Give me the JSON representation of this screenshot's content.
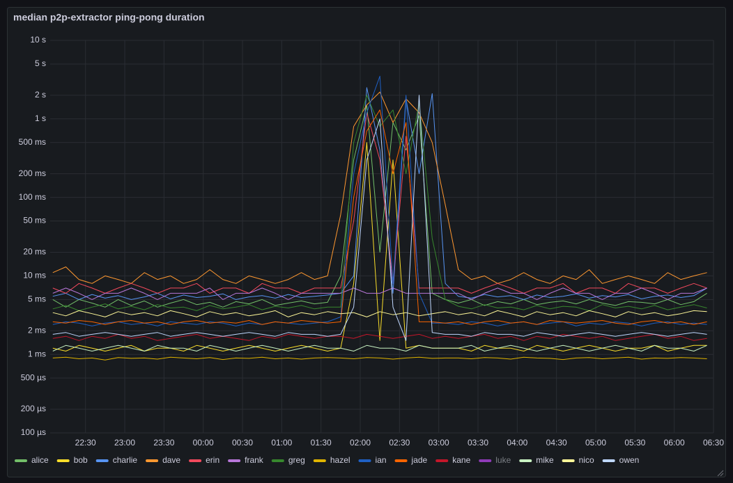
{
  "chart_data": {
    "type": "line",
    "title": "median p2p-extractor ping-pong duration",
    "log_y": true,
    "grid": true,
    "x": [
      5,
      15,
      25,
      35,
      45,
      55,
      65,
      75,
      85,
      95,
      105,
      115,
      125,
      135,
      145,
      155,
      165,
      175,
      185,
      195,
      205,
      215,
      225,
      235,
      245,
      255,
      265,
      275,
      285,
      295,
      305,
      315,
      325,
      335,
      345,
      355,
      365,
      375,
      385,
      395,
      405,
      415,
      425,
      435,
      445,
      455,
      465,
      475,
      485,
      495,
      505
    ],
    "xlim": [
      3,
      510
    ],
    "xticks": [
      {
        "value": 30,
        "label": "22:30"
      },
      {
        "value": 60,
        "label": "23:00"
      },
      {
        "value": 90,
        "label": "23:30"
      },
      {
        "value": 120,
        "label": "00:00"
      },
      {
        "value": 150,
        "label": "00:30"
      },
      {
        "value": 180,
        "label": "01:00"
      },
      {
        "value": 210,
        "label": "01:30"
      },
      {
        "value": 240,
        "label": "02:00"
      },
      {
        "value": 270,
        "label": "02:30"
      },
      {
        "value": 300,
        "label": "03:00"
      },
      {
        "value": 330,
        "label": "03:30"
      },
      {
        "value": 360,
        "label": "04:00"
      },
      {
        "value": 390,
        "label": "04:30"
      },
      {
        "value": 420,
        "label": "05:00"
      },
      {
        "value": 450,
        "label": "05:30"
      },
      {
        "value": 480,
        "label": "06:00"
      },
      {
        "value": 510,
        "label": "06:30"
      }
    ],
    "ylim": [
      0.0001,
      10
    ],
    "yticks": [
      {
        "value": 0.0001,
        "label": "100 µs"
      },
      {
        "value": 0.0002,
        "label": "200 µs"
      },
      {
        "value": 0.0005,
        "label": "500 µs"
      },
      {
        "value": 0.001,
        "label": "1 ms"
      },
      {
        "value": 0.002,
        "label": "2 ms"
      },
      {
        "value": 0.005,
        "label": "5 ms"
      },
      {
        "value": 0.01,
        "label": "10 ms"
      },
      {
        "value": 0.02,
        "label": "20 ms"
      },
      {
        "value": 0.05,
        "label": "50 ms"
      },
      {
        "value": 0.1,
        "label": "100 ms"
      },
      {
        "value": 0.2,
        "label": "200 ms"
      },
      {
        "value": 0.5,
        "label": "500 ms"
      },
      {
        "value": 1,
        "label": "1 s"
      },
      {
        "value": 2,
        "label": "2 s"
      },
      {
        "value": 5,
        "label": "5 s"
      },
      {
        "value": 10,
        "label": "10 s"
      }
    ],
    "series": [
      {
        "name": "alice",
        "color": "#73bf69",
        "values": [
          0.005,
          0.004,
          0.005,
          0.0045,
          0.004,
          0.005,
          0.0042,
          0.0048,
          0.004,
          0.0045,
          0.005,
          0.0043,
          0.0046,
          0.004,
          0.0047,
          0.0044,
          0.005,
          0.0042,
          0.0045,
          0.0048,
          0.0044,
          0.0046,
          0.01,
          0.3,
          1.5,
          0.02,
          0.9,
          0.4,
          1.1,
          0.006,
          0.005,
          0.0045,
          0.005,
          0.0042,
          0.0047,
          0.0044,
          0.005,
          0.0043,
          0.0046,
          0.0048,
          0.0044,
          0.005,
          0.0045,
          0.0042,
          0.0047,
          0.0046,
          0.0044,
          0.005,
          0.0043,
          0.0047,
          0.006
        ]
      },
      {
        "name": "bob",
        "color": "#fade2a",
        "values": [
          0.0012,
          0.0011,
          0.0013,
          0.0012,
          0.0011,
          0.0012,
          0.0013,
          0.0011,
          0.0012,
          0.0012,
          0.0011,
          0.0013,
          0.0012,
          0.0011,
          0.0012,
          0.0013,
          0.0012,
          0.0011,
          0.0012,
          0.0013,
          0.0012,
          0.0011,
          0.0012,
          0.008,
          0.5,
          0.0015,
          0.3,
          0.0012,
          0.0013,
          0.0012,
          0.0012,
          0.0012,
          0.0011,
          0.0013,
          0.0012,
          0.0012,
          0.0011,
          0.0013,
          0.0012,
          0.0011,
          0.0012,
          0.0013,
          0.0012,
          0.0011,
          0.0012,
          0.0012,
          0.0013,
          0.0011,
          0.0012,
          0.0013,
          0.0013
        ]
      },
      {
        "name": "charlie",
        "color": "#5794f2",
        "values": [
          0.0055,
          0.006,
          0.005,
          0.0058,
          0.0052,
          0.0056,
          0.005,
          0.0054,
          0.006,
          0.0051,
          0.0057,
          0.0053,
          0.0055,
          0.0059,
          0.005,
          0.0054,
          0.0056,
          0.0052,
          0.0058,
          0.0053,
          0.0055,
          0.0057,
          0.006,
          0.01,
          2.5,
          0.4,
          0.006,
          1.8,
          0.2,
          2.1,
          0.008,
          0.0055,
          0.0052,
          0.0058,
          0.0054,
          0.0056,
          0.005,
          0.0057,
          0.0053,
          0.0055,
          0.0059,
          0.0052,
          0.0056,
          0.0054,
          0.0058,
          0.0051,
          0.0055,
          0.0057,
          0.0053,
          0.0056,
          0.007
        ]
      },
      {
        "name": "dave",
        "color": "#ff9830",
        "values": [
          0.011,
          0.013,
          0.009,
          0.008,
          0.01,
          0.009,
          0.008,
          0.011,
          0.009,
          0.01,
          0.008,
          0.009,
          0.012,
          0.009,
          0.008,
          0.01,
          0.009,
          0.008,
          0.009,
          0.011,
          0.009,
          0.01,
          0.06,
          0.8,
          1.5,
          2.2,
          0.9,
          1.8,
          1.2,
          0.5,
          0.08,
          0.012,
          0.009,
          0.01,
          0.008,
          0.009,
          0.011,
          0.009,
          0.008,
          0.01,
          0.009,
          0.012,
          0.008,
          0.009,
          0.01,
          0.009,
          0.008,
          0.011,
          0.009,
          0.01,
          0.011
        ]
      },
      {
        "name": "erin",
        "color": "#f2495c",
        "values": [
          0.007,
          0.006,
          0.008,
          0.007,
          0.006,
          0.007,
          0.008,
          0.007,
          0.006,
          0.007,
          0.007,
          0.008,
          0.006,
          0.007,
          0.007,
          0.006,
          0.008,
          0.007,
          0.007,
          0.006,
          0.007,
          0.007,
          0.007,
          0.05,
          1.2,
          0.3,
          0.008,
          0.6,
          0.007,
          0.007,
          0.007,
          0.007,
          0.006,
          0.007,
          0.008,
          0.007,
          0.006,
          0.007,
          0.007,
          0.008,
          0.006,
          0.007,
          0.007,
          0.006,
          0.008,
          0.007,
          0.007,
          0.006,
          0.007,
          0.008,
          0.007
        ]
      },
      {
        "name": "frank",
        "color": "#b877d9",
        "values": [
          0.006,
          0.007,
          0.006,
          0.005,
          0.006,
          0.006,
          0.007,
          0.006,
          0.005,
          0.006,
          0.006,
          0.006,
          0.007,
          0.005,
          0.006,
          0.006,
          0.007,
          0.006,
          0.005,
          0.006,
          0.006,
          0.006,
          0.006,
          0.007,
          0.006,
          0.006,
          0.007,
          0.006,
          0.006,
          0.006,
          0.006,
          0.006,
          0.005,
          0.006,
          0.007,
          0.006,
          0.006,
          0.005,
          0.006,
          0.007,
          0.006,
          0.006,
          0.005,
          0.006,
          0.006,
          0.007,
          0.006,
          0.005,
          0.006,
          0.006,
          0.007
        ]
      },
      {
        "name": "greg",
        "color": "#37872d",
        "values": [
          0.0038,
          0.0042,
          0.0036,
          0.004,
          0.0044,
          0.0038,
          0.0041,
          0.0037,
          0.0043,
          0.0039,
          0.004,
          0.0036,
          0.0042,
          0.0038,
          0.004,
          0.0043,
          0.0037,
          0.0041,
          0.0039,
          0.0042,
          0.0038,
          0.004,
          0.004,
          0.5,
          2.0,
          0.8,
          1.3,
          0.2,
          1.6,
          0.03,
          0.005,
          0.0041,
          0.0038,
          0.0043,
          0.0039,
          0.004,
          0.0037,
          0.0042,
          0.0038,
          0.0041,
          0.004,
          0.0036,
          0.0043,
          0.0039,
          0.0041,
          0.0038,
          0.0042,
          0.0037,
          0.004,
          0.0043,
          0.0039
        ]
      },
      {
        "name": "hazel",
        "color": "#e0b400",
        "values": [
          0.0009,
          0.00092,
          0.00088,
          0.0009,
          0.00085,
          0.00091,
          0.00089,
          0.0009,
          0.00087,
          0.00092,
          0.0009,
          0.00088,
          0.00091,
          0.00086,
          0.0009,
          0.00089,
          0.00092,
          0.00088,
          0.0009,
          0.00087,
          0.0009,
          0.00091,
          0.0009,
          0.00088,
          0.00091,
          0.0009,
          0.00087,
          0.0009,
          0.00092,
          0.00089,
          0.0009,
          0.0009,
          0.00088,
          0.00091,
          0.0009,
          0.00087,
          0.00092,
          0.0009,
          0.00089,
          0.00086,
          0.0009,
          0.00091,
          0.00088,
          0.0009,
          0.00092,
          0.00087,
          0.0009,
          0.00089,
          0.00091,
          0.0009,
          0.00088
        ]
      },
      {
        "name": "ian",
        "color": "#1f60c4",
        "values": [
          0.0024,
          0.0026,
          0.0025,
          0.0023,
          0.0025,
          0.0026,
          0.0024,
          0.0025,
          0.0023,
          0.0026,
          0.0025,
          0.0024,
          0.0026,
          0.0025,
          0.0023,
          0.0025,
          0.0024,
          0.0026,
          0.0025,
          0.0024,
          0.0025,
          0.0026,
          0.003,
          0.2,
          1.2,
          3.5,
          0.008,
          2.0,
          0.006,
          0.0025,
          0.0025,
          0.0024,
          0.0026,
          0.0025,
          0.0023,
          0.0025,
          0.0026,
          0.0024,
          0.0025,
          0.0026,
          0.0023,
          0.0025,
          0.0024,
          0.0026,
          0.0025,
          0.0023,
          0.0025,
          0.0026,
          0.0024,
          0.0025,
          0.0024
        ]
      },
      {
        "name": "jade",
        "color": "#fa6400",
        "values": [
          0.0026,
          0.0025,
          0.0027,
          0.0026,
          0.0024,
          0.0026,
          0.0027,
          0.0025,
          0.0026,
          0.0024,
          0.0026,
          0.0027,
          0.0025,
          0.0026,
          0.0025,
          0.0027,
          0.0024,
          0.0026,
          0.0025,
          0.0027,
          0.0026,
          0.0025,
          0.0026,
          0.1,
          0.7,
          1.3,
          0.2,
          0.9,
          0.0026,
          0.0026,
          0.0025,
          0.0026,
          0.0024,
          0.0026,
          0.0027,
          0.0025,
          0.0026,
          0.0024,
          0.0027,
          0.0026,
          0.0025,
          0.0026,
          0.0027,
          0.0025,
          0.0024,
          0.0026,
          0.0027,
          0.0025,
          0.0026,
          0.0024,
          0.0026
        ]
      },
      {
        "name": "kane",
        "color": "#c4162a",
        "values": [
          0.0016,
          0.0017,
          0.0015,
          0.0017,
          0.0016,
          0.0018,
          0.0016,
          0.0017,
          0.0015,
          0.0016,
          0.0017,
          0.0018,
          0.0016,
          0.0017,
          0.0016,
          0.0015,
          0.0017,
          0.0016,
          0.0018,
          0.0017,
          0.0016,
          0.0017,
          0.0017,
          0.0016,
          0.0018,
          0.0017,
          0.0016,
          0.0017,
          0.0018,
          0.0016,
          0.0017,
          0.0016,
          0.0017,
          0.0018,
          0.0016,
          0.0017,
          0.0015,
          0.0017,
          0.0016,
          0.0018,
          0.0017,
          0.0016,
          0.0017,
          0.0015,
          0.0016,
          0.0017,
          0.0018,
          0.0016,
          0.0017,
          0.0015,
          0.0016
        ]
      },
      {
        "name": "luke",
        "color": "#8f3bb8",
        "hidden": true,
        "values": [
          null,
          null,
          null,
          null,
          null,
          null,
          null,
          null,
          null,
          null,
          null,
          null,
          null,
          null,
          null,
          null,
          null,
          null,
          null,
          null,
          null,
          null,
          null,
          null,
          null,
          null,
          null,
          null,
          null,
          null,
          null,
          null,
          null,
          null,
          null,
          null,
          null,
          null,
          null,
          null,
          null,
          null,
          null,
          null,
          null,
          null,
          null,
          null,
          null,
          null,
          null
        ]
      },
      {
        "name": "mike",
        "color": "#c8f2c2",
        "values": [
          0.0011,
          0.0013,
          0.0012,
          0.0011,
          0.0012,
          0.0013,
          0.0012,
          0.0011,
          0.0013,
          0.0012,
          0.0012,
          0.0011,
          0.0013,
          0.0012,
          0.0011,
          0.0012,
          0.0013,
          0.0012,
          0.0011,
          0.0012,
          0.0013,
          0.0012,
          0.0012,
          0.0011,
          0.0013,
          0.0012,
          0.0012,
          0.0011,
          0.0013,
          0.0012,
          0.0012,
          0.0012,
          0.0013,
          0.0011,
          0.0012,
          0.0013,
          0.0012,
          0.0011,
          0.0012,
          0.0013,
          0.0012,
          0.0011,
          0.0012,
          0.0013,
          0.0012,
          0.0011,
          0.0013,
          0.0012,
          0.0012,
          0.0011,
          0.0013
        ]
      },
      {
        "name": "nico",
        "color": "#fff899",
        "values": [
          0.0034,
          0.0031,
          0.0036,
          0.0033,
          0.003,
          0.0035,
          0.0032,
          0.0034,
          0.0031,
          0.0036,
          0.0033,
          0.003,
          0.0035,
          0.0032,
          0.0034,
          0.0031,
          0.0033,
          0.0036,
          0.003,
          0.0034,
          0.0032,
          0.0035,
          0.0033,
          0.0034,
          0.003,
          0.0035,
          0.0032,
          0.0034,
          0.0031,
          0.0033,
          0.0035,
          0.0032,
          0.0034,
          0.0031,
          0.0036,
          0.0033,
          0.003,
          0.0035,
          0.0032,
          0.0034,
          0.0031,
          0.0036,
          0.0033,
          0.003,
          0.0035,
          0.0032,
          0.0034,
          0.0031,
          0.0033,
          0.0036,
          0.0035
        ]
      },
      {
        "name": "owen",
        "color": "#c0d8ff",
        "values": [
          0.0018,
          0.0019,
          0.0017,
          0.0018,
          0.0019,
          0.0018,
          0.0017,
          0.0018,
          0.0019,
          0.0017,
          0.0018,
          0.0019,
          0.0018,
          0.0017,
          0.0018,
          0.0019,
          0.0018,
          0.0017,
          0.0019,
          0.0018,
          0.0018,
          0.0017,
          0.0018,
          0.004,
          0.3,
          1.0,
          0.004,
          0.0015,
          2.0,
          0.0019,
          0.0018,
          0.0018,
          0.0017,
          0.0019,
          0.0018,
          0.0018,
          0.0017,
          0.0019,
          0.0018,
          0.0017,
          0.0018,
          0.0019,
          0.0018,
          0.0017,
          0.0018,
          0.0019,
          0.0018,
          0.0017,
          0.0018,
          0.0019,
          0.0018
        ]
      }
    ]
  }
}
